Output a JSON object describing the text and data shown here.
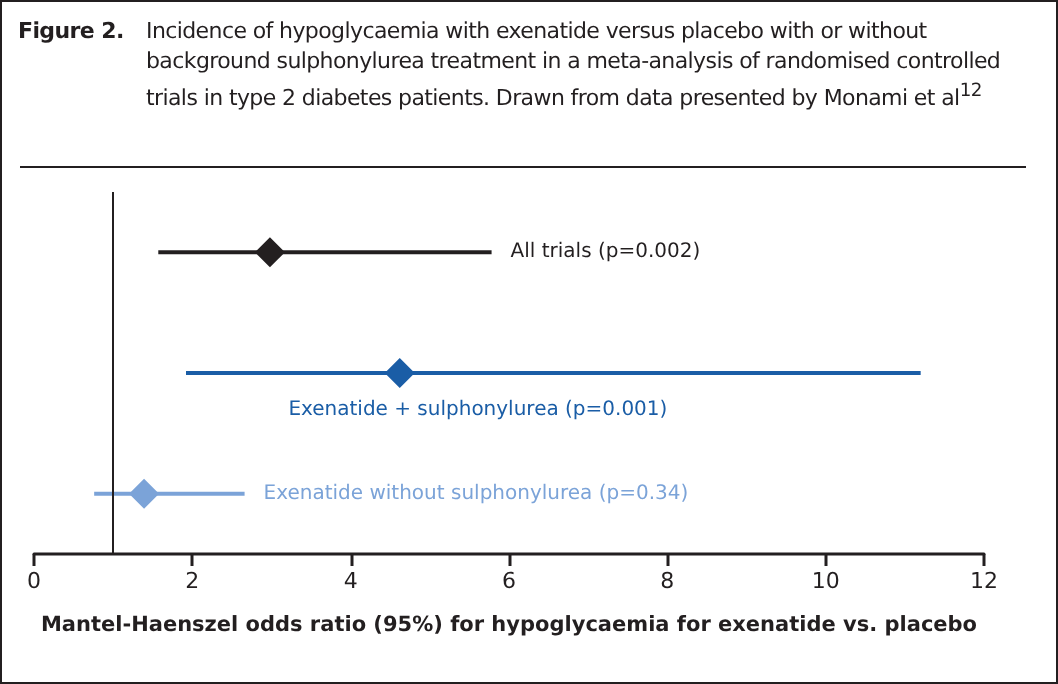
{
  "chart_data": {
    "type": "scatter",
    "orientation": "horizontal",
    "title": "Figure 2.",
    "subtitle": "Incidence of hypoglycaemia with exenatide versus placebo with or without background sulphonylurea treatment in a meta-analysis of randomised controlled trials in type 2 diabetes patients. Drawn from data presented by Monami et al$^{12}$",
    "xlabel": "Mantel-Haenszel odds ratio (95%) for hypoglycaemia for exenatide vs. placebo",
    "categories": [
      null,
      null,
      null
    ],
    "series": [
      {
        "name": "All trials (p=0.002)",
        "color": "#231f20",
        "values": [
          2.98,
          null,
          null
        ],
        "errors": [
          [
            1.57,
            5.78
          ],
          null,
          null
        ]
      },
      {
        "name": "Exenatide + sulphonylurea (p=0.001)",
        "color": "#1a5da6",
        "values": [
          null,
          4.62,
          null
        ],
        "errors": [
          null,
          [
            1.92,
            11.2
          ],
          null
        ]
      },
      {
        "name": "Exenatide without sulphonylurea (p=0.34)",
        "color": "#7ba3d8",
        "values": [
          null,
          null,
          1.39
        ],
        "errors": [
          null,
          null,
          [
            0.76,
            2.66
          ]
        ]
      }
    ],
    "xlim": [
      0,
      12
    ],
    "xticks": [
      0,
      2,
      4,
      6,
      8,
      10,
      12
    ],
    "ref_lines": [
      {
        "axis": "x",
        "value": 1,
        "color": "#231f20"
      }
    ],
    "marker": "diamond",
    "grid": false,
    "legend": false,
    "tick_labels": "x"
  }
}
